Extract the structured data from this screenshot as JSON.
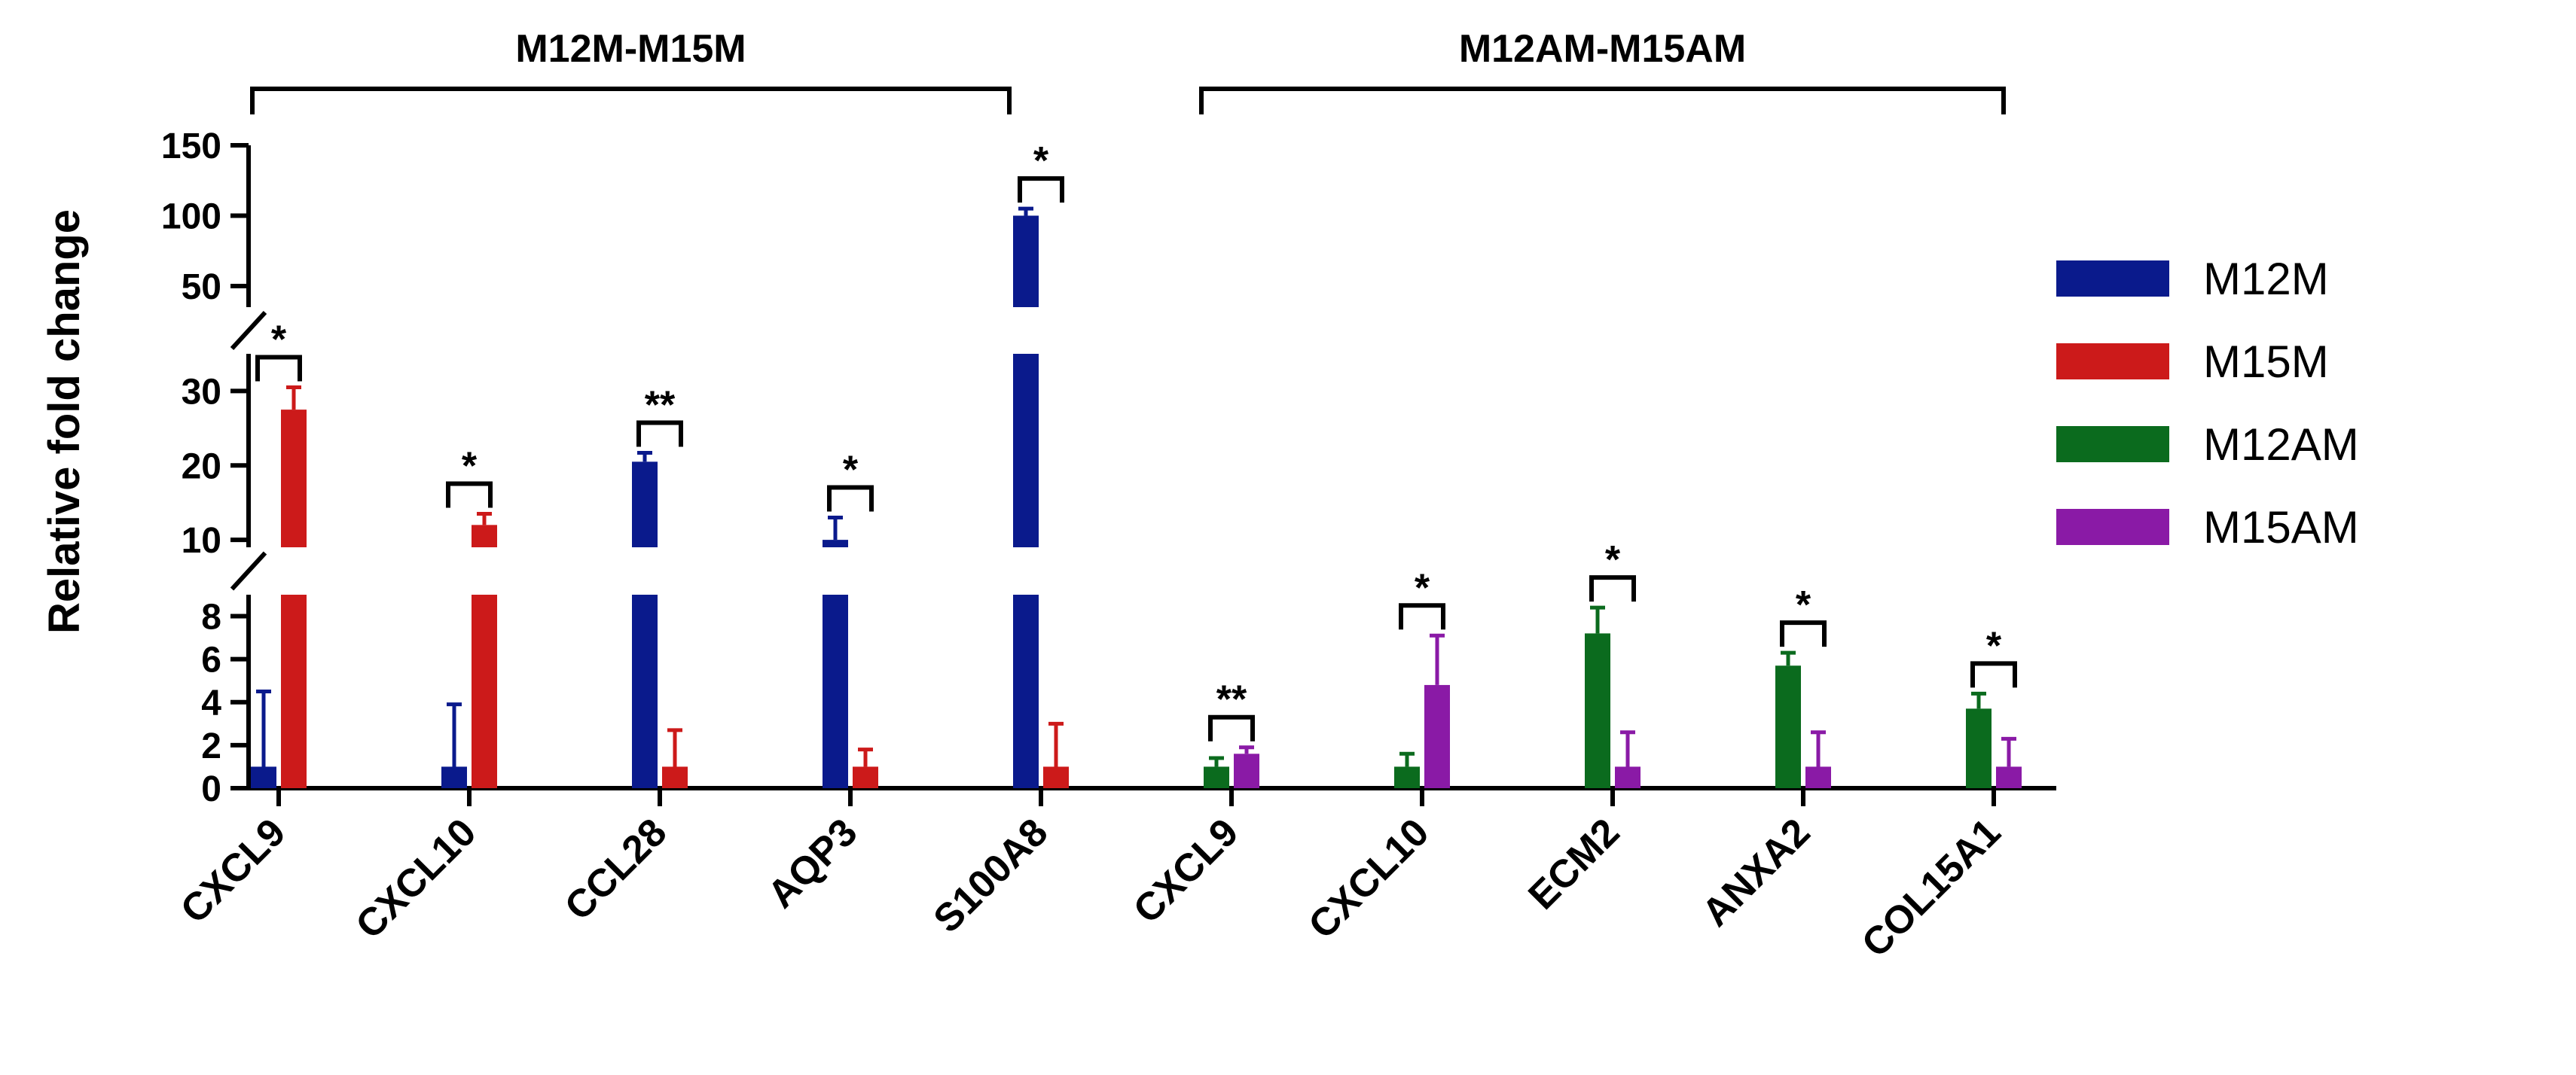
{
  "chart_data": {
    "type": "bar",
    "ylabel": "Relative fold change",
    "y_ranges": [
      [
        0,
        9
      ],
      [
        9,
        35
      ],
      [
        35,
        150
      ]
    ],
    "y_ticks": [
      {
        "value": 0,
        "label": "0"
      },
      {
        "value": 2,
        "label": "2"
      },
      {
        "value": 4,
        "label": "4"
      },
      {
        "value": 6,
        "label": "6"
      },
      {
        "value": 8,
        "label": "8"
      },
      {
        "value": 10,
        "label": "10"
      },
      {
        "value": 20,
        "label": "20"
      },
      {
        "value": 30,
        "label": "30"
      },
      {
        "value": 50,
        "label": "50"
      },
      {
        "value": 100,
        "label": "100"
      },
      {
        "value": 150,
        "label": "150"
      }
    ],
    "groups": [
      {
        "label": "M12M-M15M",
        "series": [
          "M12M",
          "M15M"
        ],
        "categories": [
          "CXCL9",
          "CXCL10",
          "CCL28",
          "AQP3",
          "S100A8"
        ],
        "values": [
          [
            1,
            27.5
          ],
          [
            1,
            12
          ],
          [
            20.5,
            1
          ],
          [
            10,
            1
          ],
          [
            100,
            1
          ]
        ],
        "errors": [
          [
            3.5,
            3
          ],
          [
            2.9,
            1.5
          ],
          [
            1.2,
            1.7
          ],
          [
            3,
            0.8
          ],
          [
            5,
            2
          ]
        ],
        "significance": [
          "*",
          "*",
          "**",
          "*",
          "*"
        ]
      },
      {
        "label": "M12AM-M15AM",
        "series": [
          "M12AM",
          "M15AM"
        ],
        "categories": [
          "CXCL9",
          "CXCL10",
          "ECM2",
          "ANXA2",
          "COL15A1"
        ],
        "values": [
          [
            1,
            1.6
          ],
          [
            1,
            4.8
          ],
          [
            7.2,
            1
          ],
          [
            5.7,
            1
          ],
          [
            3.7,
            1
          ]
        ],
        "errors": [
          [
            0.4,
            0.3
          ],
          [
            0.6,
            2.3
          ],
          [
            1.2,
            1.6
          ],
          [
            0.6,
            1.6
          ],
          [
            0.7,
            1.3
          ]
        ],
        "significance": [
          "**",
          "*",
          "*",
          "*",
          "*"
        ]
      }
    ],
    "legend": [
      {
        "name": "M12M",
        "color": "#0a1a8c"
      },
      {
        "name": "M15M",
        "color": "#cc1a1a"
      },
      {
        "name": "M12AM",
        "color": "#0b6b1e"
      },
      {
        "name": "M15AM",
        "color": "#8a1aa6"
      }
    ]
  }
}
